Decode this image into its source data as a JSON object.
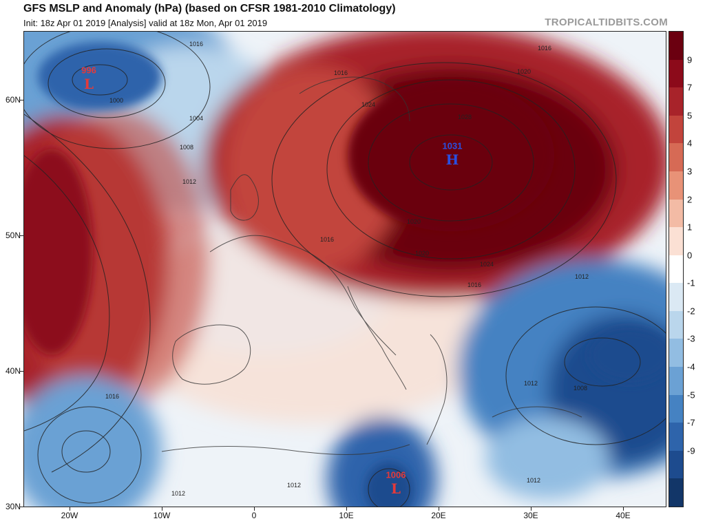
{
  "header": {
    "title": "GFS MSLP and Anomaly (hPa) (based on CFSR 1981-2010 Climatology)",
    "subtitle": "Init: 18z Apr 01 2019   [Analysis]   valid at 18z Mon, Apr 01 2019",
    "brand": "TROPICALTIDBITS.COM"
  },
  "axes": {
    "lat_labels": [
      "60N",
      "50N",
      "40N",
      "30N"
    ],
    "lon_labels": [
      "20W",
      "10W",
      "0",
      "10E",
      "20E",
      "30E",
      "40E"
    ]
  },
  "colorbar": {
    "ticks": [
      "9",
      "7",
      "5",
      "4",
      "3",
      "2",
      "1",
      "0",
      "-1",
      "-2",
      "-3",
      "-4",
      "-5",
      "-7",
      "-9"
    ],
    "colors": [
      "#6b0010",
      "#8c0a1a",
      "#a8232a",
      "#c2443c",
      "#d66a55",
      "#e89277",
      "#f3bba5",
      "#fbe0d4",
      "#ffffff",
      "#dbe9f4",
      "#bad6ec",
      "#92bde2",
      "#6ba1d4",
      "#4582c2",
      "#2e64ab",
      "#1d4b8e",
      "#123668"
    ]
  },
  "pressure_centers": [
    {
      "type": "L",
      "value": "996",
      "color": "#e43a3a"
    },
    {
      "type": "H",
      "value": "1031",
      "color": "#2a4fe0"
    },
    {
      "type": "L",
      "value": "1006",
      "color": "#e43a3a"
    }
  ],
  "contour_labels": [
    "1000",
    "1004",
    "1008",
    "1012",
    "1016",
    "1020",
    "1024",
    "1028",
    "1016",
    "1020",
    "1024",
    "1016",
    "1012",
    "1016",
    "1012",
    "1008",
    "1012",
    "1012",
    "1012",
    "1016",
    "1020",
    "1016"
  ]
}
